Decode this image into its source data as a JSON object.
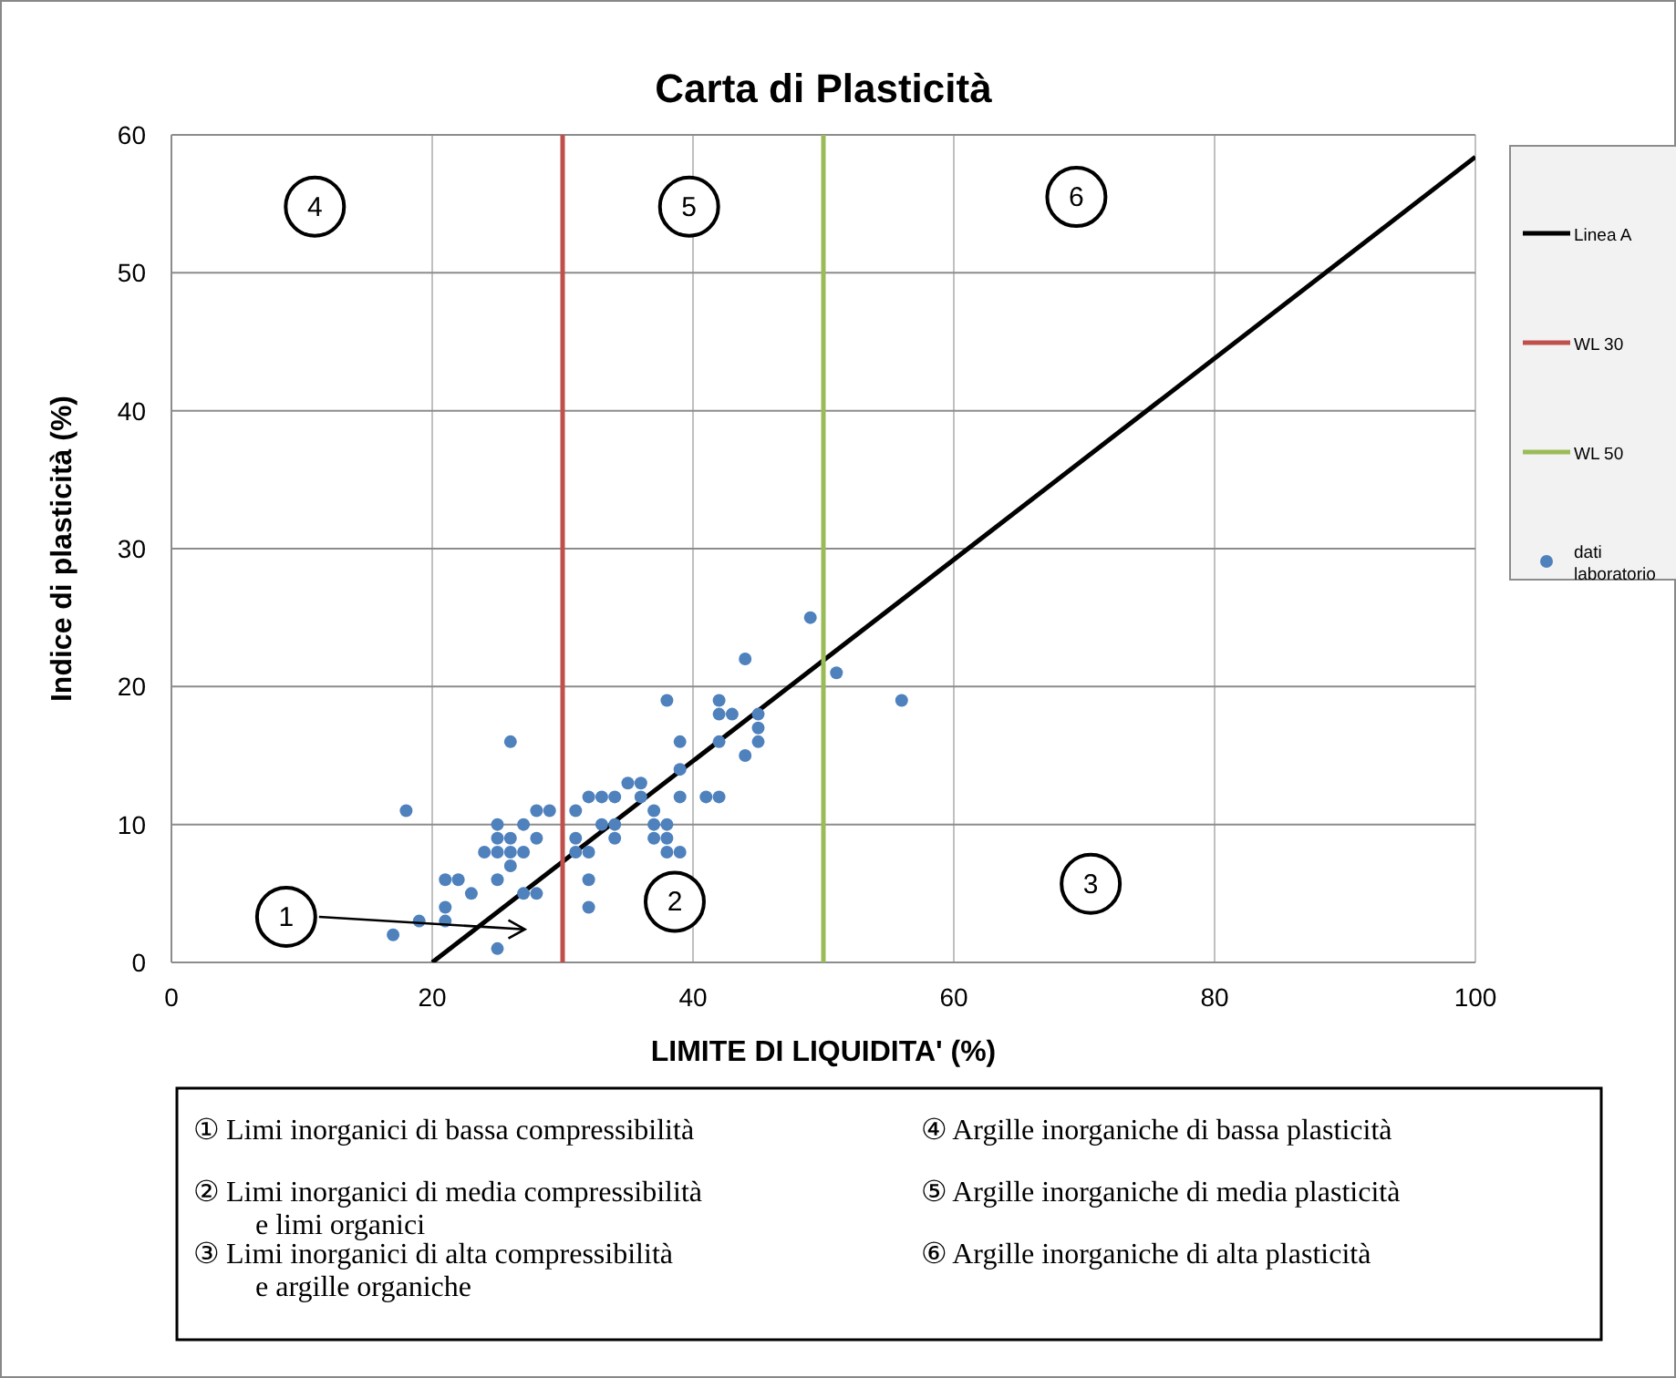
{
  "chart_data": {
    "type": "scatter",
    "title": "Carta di Plasticità",
    "xlabel": "LIMITE DI LIQUIDITA' (%)",
    "ylabel": "Indice di plasticità  (%)",
    "xlim": [
      0,
      100
    ],
    "xticks": [
      0,
      20,
      40,
      60,
      80,
      100
    ],
    "ylim": [
      0,
      60
    ],
    "yticks": [
      0,
      10,
      20,
      30,
      40,
      50,
      60
    ],
    "grid": true,
    "legend": "right",
    "series": [
      {
        "name": "Linea A",
        "type": "line",
        "color": "#000000",
        "x": [
          20,
          100
        ],
        "values": [
          0,
          58.4
        ]
      },
      {
        "name": "WL 30",
        "type": "line",
        "color": "#c0504d",
        "x": [
          30,
          30
        ],
        "values": [
          0,
          60
        ]
      },
      {
        "name": "WL 50",
        "type": "line",
        "color": "#9bbb59",
        "x": [
          50,
          50
        ],
        "values": [
          0,
          60
        ]
      },
      {
        "name": "dati laboratorio",
        "marker": "circle",
        "color": "#4f81bd",
        "x": [
          17,
          18,
          19,
          21,
          21,
          21,
          22,
          23,
          24,
          25,
          25,
          25,
          25,
          25,
          26,
          26,
          26,
          26,
          27,
          27,
          27,
          28,
          28,
          28,
          29,
          31,
          31,
          31,
          32,
          32,
          32,
          32,
          33,
          33,
          34,
          34,
          34,
          35,
          36,
          36,
          37,
          37,
          37,
          38,
          38,
          38,
          38,
          39,
          39,
          39,
          39,
          41,
          42,
          42,
          42,
          42,
          43,
          44,
          44,
          45,
          45,
          45,
          49,
          51,
          56
        ],
        "values": [
          2,
          11,
          3,
          3,
          4,
          6,
          6,
          5,
          8,
          6,
          8,
          9,
          10,
          1,
          16,
          7,
          8,
          9,
          10,
          8,
          5,
          5,
          9,
          11,
          11,
          11,
          9,
          8,
          12,
          8,
          6,
          4,
          12,
          10,
          12,
          10,
          9,
          13,
          13,
          12,
          11,
          10,
          9,
          19,
          10,
          9,
          8,
          16,
          14,
          12,
          8,
          12,
          19,
          18,
          16,
          12,
          18,
          22,
          15,
          18,
          17,
          16,
          25,
          21,
          19
        ]
      }
    ],
    "annotations": [
      {
        "text": "1",
        "x": 8.8,
        "y": 3.3
      },
      {
        "text": "2",
        "x": 38.6,
        "y": 4.4
      },
      {
        "text": "3",
        "x": 70.5,
        "y": 5.7
      },
      {
        "text": "4",
        "x": 11,
        "y": 54.8
      },
      {
        "text": "5",
        "x": 39.7,
        "y": 54.8
      },
      {
        "text": "6",
        "x": 69.4,
        "y": 55.5
      },
      "① Limi inorganici di bassa compressibilità",
      "② Limi inorganici di media compressibilità e limi organici",
      "③ Limi inorganici di alta compressibilità e argille organiche",
      "④ Argille inorganiche di bassa plasticità",
      "⑤ Argille inorganiche di media plasticità",
      "⑥ Argille inorganiche di alta plasticità"
    ]
  }
}
